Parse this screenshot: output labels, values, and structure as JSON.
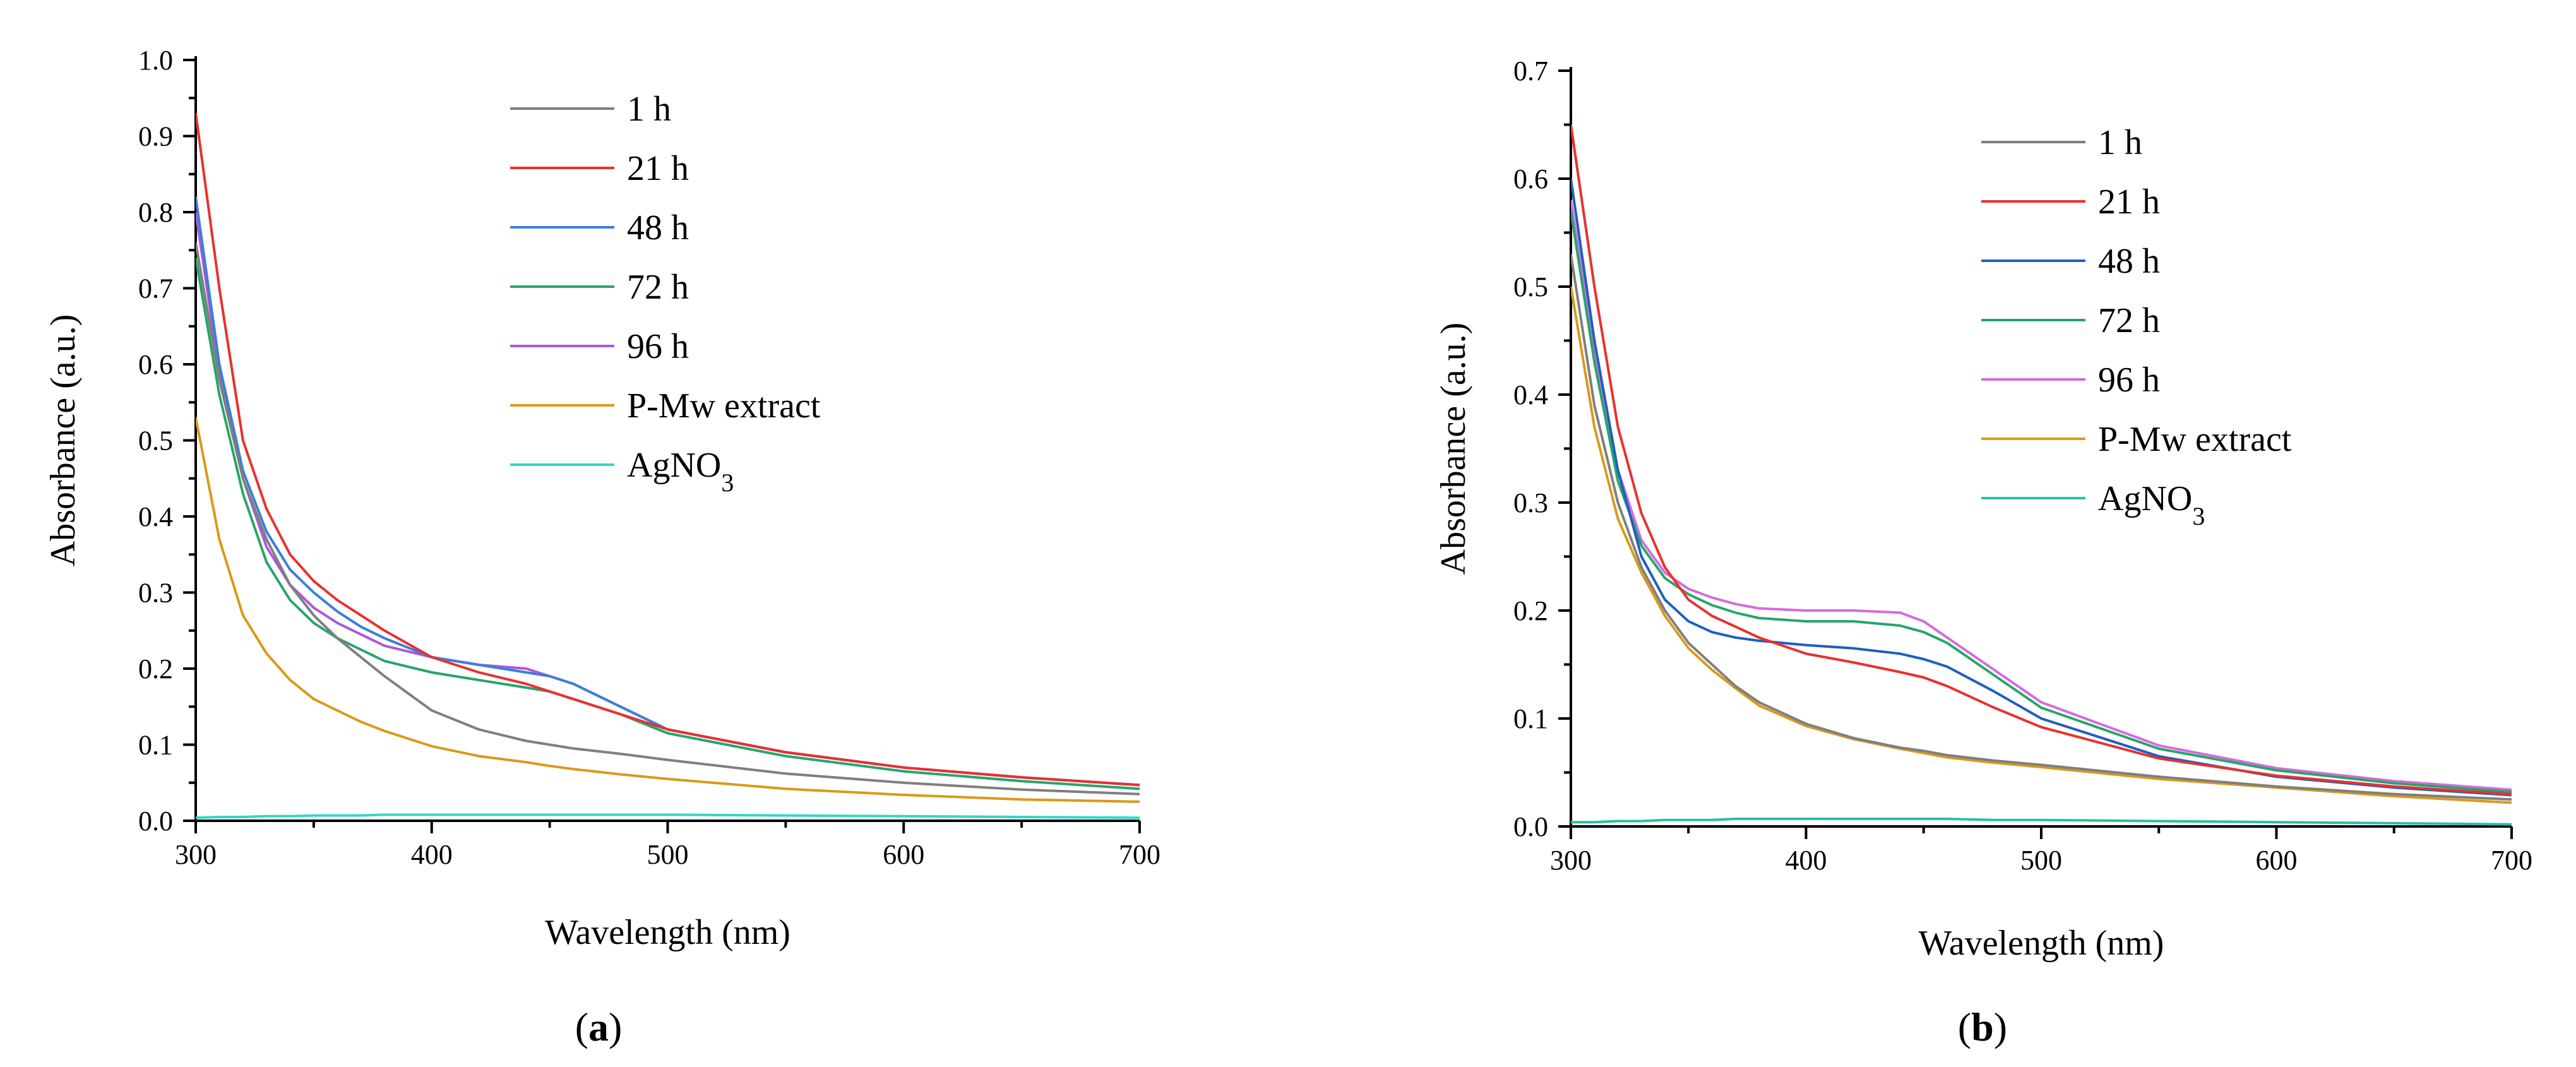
{
  "chart_data": [
    {
      "type": "line",
      "panel": "a",
      "panel_label": [
        "(",
        "a",
        ")"
      ],
      "xlabel": "Wavelength (nm)",
      "ylabel": "Absorbance (a.u.)",
      "xlim": [
        300,
        700
      ],
      "ylim": [
        0,
        1.0
      ],
      "x_ticks": [
        300,
        400,
        500,
        600,
        700
      ],
      "y_ticks": [
        0.0,
        0.1,
        0.2,
        0.3,
        0.4,
        0.5,
        0.6,
        0.7,
        0.8,
        0.9,
        1.0
      ],
      "x_tick_labels": [
        "300",
        "400",
        "500",
        "600",
        "700"
      ],
      "y_tick_labels": [
        "0.0",
        "0.1",
        "0.2",
        "0.3",
        "0.4",
        "0.5",
        "0.6",
        "0.7",
        "0.8",
        "0.9",
        "1.0"
      ],
      "legend_position": "top-center",
      "x": [
        300,
        310,
        320,
        330,
        340,
        350,
        360,
        370,
        380,
        400,
        420,
        440,
        450,
        460,
        480,
        500,
        550,
        600,
        650,
        700
      ],
      "series": [
        {
          "name": "1 h",
          "color": "#7f7f7f",
          "values": [
            0.76,
            0.58,
            0.45,
            0.37,
            0.31,
            0.27,
            0.24,
            0.215,
            0.19,
            0.145,
            0.12,
            0.105,
            0.1,
            0.095,
            0.088,
            0.08,
            0.062,
            0.05,
            0.041,
            0.035
          ]
        },
        {
          "name": "21 h",
          "color": "#e8312f",
          "values": [
            0.93,
            0.7,
            0.5,
            0.41,
            0.35,
            0.315,
            0.29,
            0.27,
            0.25,
            0.215,
            0.195,
            0.18,
            0.17,
            0.16,
            0.14,
            0.12,
            0.09,
            0.07,
            0.057,
            0.047
          ]
        },
        {
          "name": "48 h",
          "color": "#3a7fd9",
          "values": [
            0.82,
            0.6,
            0.46,
            0.38,
            0.33,
            0.3,
            0.275,
            0.255,
            0.24,
            0.215,
            0.205,
            0.195,
            0.19,
            0.18,
            0.15,
            0.12,
            0.09,
            0.07,
            0.057,
            0.047
          ]
        },
        {
          "name": "72 h",
          "color": "#27a56a",
          "values": [
            0.74,
            0.56,
            0.43,
            0.34,
            0.29,
            0.26,
            0.24,
            0.225,
            0.21,
            0.195,
            0.185,
            0.175,
            0.17,
            0.16,
            0.14,
            0.115,
            0.085,
            0.065,
            0.052,
            0.042
          ]
        },
        {
          "name": "96 h",
          "color": "#b157d8",
          "values": [
            0.8,
            0.59,
            0.45,
            0.36,
            0.31,
            0.28,
            0.26,
            0.245,
            0.23,
            0.215,
            0.205,
            0.2,
            0.19,
            0.18,
            0.15,
            0.12,
            0.09,
            0.07,
            0.057,
            0.047
          ]
        },
        {
          "name": "P-Mw extract",
          "color": "#d99a1a",
          "values": [
            0.53,
            0.37,
            0.27,
            0.22,
            0.185,
            0.16,
            0.145,
            0.13,
            0.118,
            0.098,
            0.085,
            0.077,
            0.072,
            0.068,
            0.061,
            0.055,
            0.042,
            0.034,
            0.028,
            0.025
          ]
        },
        {
          "name": "AgNO",
          "name_sub": "3",
          "color": "#33d6c8",
          "values": [
            0.004,
            0.005,
            0.005,
            0.006,
            0.006,
            0.007,
            0.007,
            0.007,
            0.008,
            0.008,
            0.008,
            0.008,
            0.008,
            0.008,
            0.008,
            0.008,
            0.007,
            0.006,
            0.005,
            0.004
          ]
        }
      ]
    },
    {
      "type": "line",
      "panel": "b",
      "panel_label": [
        "(",
        "b",
        ")"
      ],
      "xlabel": "Wavelength (nm)",
      "ylabel": "Absorbance (a.u.)",
      "xlim": [
        300,
        700
      ],
      "ylim": [
        0,
        0.7
      ],
      "x_ticks": [
        300,
        400,
        500,
        600,
        700
      ],
      "y_ticks": [
        0.0,
        0.1,
        0.2,
        0.3,
        0.4,
        0.5,
        0.6,
        0.7
      ],
      "x_tick_labels": [
        "300",
        "400",
        "500",
        "600",
        "700"
      ],
      "y_tick_labels": [
        "0.0",
        "0.1",
        "0.2",
        "0.3",
        "0.4",
        "0.5",
        "0.6",
        "0.7"
      ],
      "legend_position": "top-center",
      "x": [
        300,
        310,
        320,
        330,
        340,
        350,
        360,
        370,
        380,
        400,
        420,
        440,
        450,
        460,
        480,
        500,
        550,
        600,
        650,
        700
      ],
      "series": [
        {
          "name": "1 h",
          "color": "#7f7f7f",
          "values": [
            0.53,
            0.39,
            0.3,
            0.24,
            0.2,
            0.17,
            0.15,
            0.13,
            0.115,
            0.095,
            0.082,
            0.073,
            0.07,
            0.066,
            0.061,
            0.057,
            0.046,
            0.037,
            0.03,
            0.025
          ]
        },
        {
          "name": "21 h",
          "color": "#e8312f",
          "values": [
            0.65,
            0.5,
            0.37,
            0.29,
            0.24,
            0.21,
            0.195,
            0.185,
            0.175,
            0.16,
            0.152,
            0.143,
            0.138,
            0.13,
            0.11,
            0.092,
            0.063,
            0.047,
            0.037,
            0.03
          ]
        },
        {
          "name": "48 h",
          "color": "#1f5fbf",
          "values": [
            0.6,
            0.45,
            0.33,
            0.25,
            0.21,
            0.19,
            0.18,
            0.175,
            0.172,
            0.168,
            0.165,
            0.16,
            0.155,
            0.148,
            0.125,
            0.1,
            0.065,
            0.046,
            0.036,
            0.029
          ]
        },
        {
          "name": "72 h",
          "color": "#27a56a",
          "values": [
            0.57,
            0.43,
            0.32,
            0.26,
            0.23,
            0.215,
            0.205,
            0.198,
            0.193,
            0.19,
            0.19,
            0.186,
            0.18,
            0.17,
            0.14,
            0.11,
            0.072,
            0.052,
            0.04,
            0.032
          ]
        },
        {
          "name": "96 h",
          "color": "#d46be0",
          "values": [
            0.58,
            0.44,
            0.33,
            0.265,
            0.235,
            0.22,
            0.212,
            0.206,
            0.202,
            0.2,
            0.2,
            0.198,
            0.19,
            0.175,
            0.145,
            0.115,
            0.075,
            0.054,
            0.042,
            0.034
          ]
        },
        {
          "name": "P-Mw extract",
          "color": "#d99a1a",
          "values": [
            0.5,
            0.37,
            0.285,
            0.235,
            0.195,
            0.165,
            0.145,
            0.128,
            0.112,
            0.093,
            0.081,
            0.072,
            0.068,
            0.064,
            0.059,
            0.055,
            0.044,
            0.036,
            0.028,
            0.022
          ]
        },
        {
          "name": "AgNO",
          "name_sub": "3",
          "color": "#2bbfa3",
          "values": [
            0.004,
            0.004,
            0.005,
            0.005,
            0.006,
            0.006,
            0.006,
            0.007,
            0.007,
            0.007,
            0.007,
            0.007,
            0.007,
            0.007,
            0.006,
            0.006,
            0.005,
            0.004,
            0.003,
            0.002
          ]
        }
      ]
    }
  ]
}
